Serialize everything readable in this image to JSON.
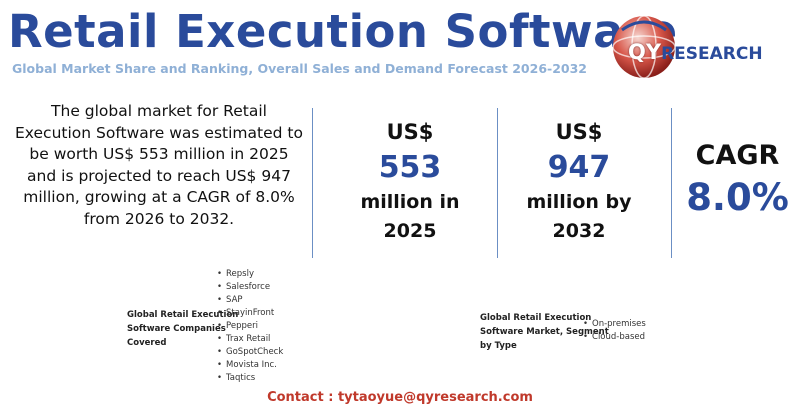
{
  "header": {
    "title": "Retail Execution Software",
    "subtitle": "Global Market Share and Ranking, Overall Sales and Demand Forecast 2026-2032"
  },
  "logo": {
    "qy": "QY",
    "research": "RESEARCH",
    "colors": {
      "red": "#c0392b",
      "blue": "#2a4b9b"
    }
  },
  "summary": "The global market for Retail Execution Software was estimated to be worth US$ 553 million in 2025 and is projected to reach US$ 947 million, growing at a CAGR of 8.0% from 2026 to 2032.",
  "stats": {
    "current": {
      "currency": "US$",
      "value": "553",
      "unit_line1": "million in",
      "unit_line2": "2025"
    },
    "forecast": {
      "currency": "US$",
      "value": "947",
      "unit_line1": "million by",
      "unit_line2": "2032"
    },
    "cagr": {
      "label": "CAGR",
      "value": "8.0%"
    }
  },
  "companies": {
    "label_line1": "Global Retail Execution",
    "label_line2": "Software Companies",
    "label_line3": "Covered",
    "items": [
      "Repsly",
      "Salesforce",
      "SAP",
      "StayinFront",
      "Pepperi",
      "Trax Retail",
      "GoSpotCheck",
      "Movista Inc.",
      "Taqtics"
    ]
  },
  "segments": {
    "label_line1": "Global Retail Execution",
    "label_line2": "Software Market, Segment",
    "label_line3": "by Type",
    "items": [
      "On-premises",
      "Cloud-based"
    ]
  },
  "contact": "Contact : tytaoyue@qyresearch.com",
  "colors": {
    "title_blue": "#2a4b9b",
    "subtitle_blue": "#8fb0d6",
    "contact_red": "#c0392b"
  }
}
